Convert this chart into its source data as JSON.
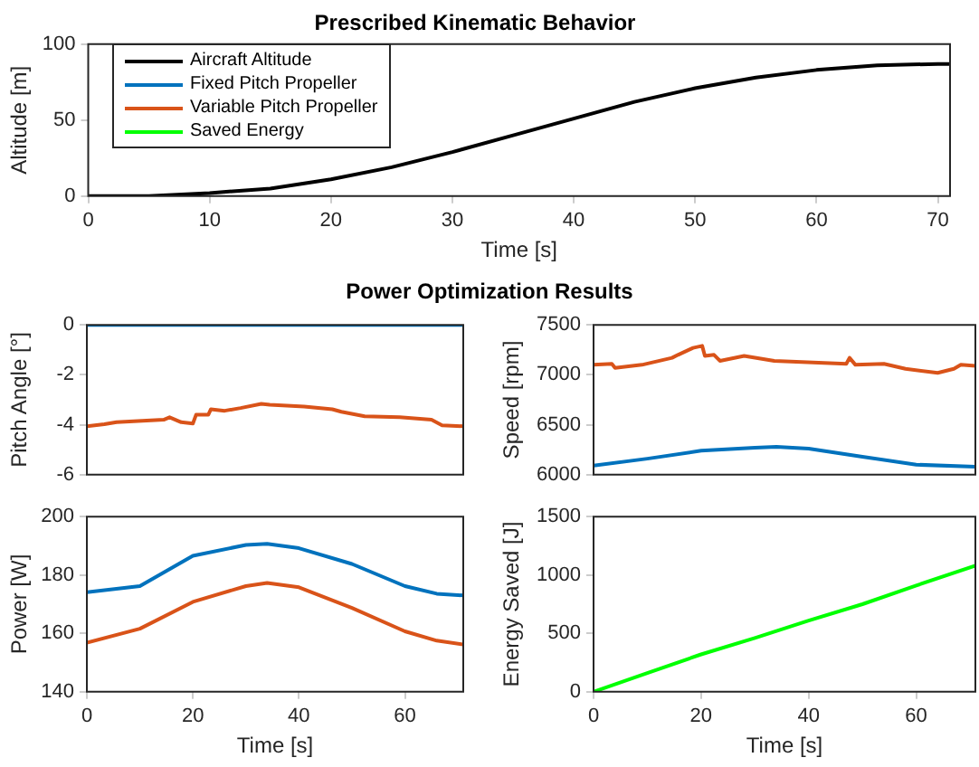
{
  "chart_data": [
    {
      "type": "line",
      "title": "Prescribed Kinematic Behavior",
      "xlabel": "Time [s]",
      "ylabel": "Altitude [m]",
      "xlim": [
        0,
        71
      ],
      "xticks": [
        0,
        10,
        20,
        30,
        40,
        50,
        60,
        70
      ],
      "ylim": [
        0,
        100
      ],
      "yticks": [
        0,
        50,
        100
      ],
      "legend": "top left",
      "x": [
        0,
        5,
        10,
        15,
        20,
        25,
        30,
        35,
        40,
        45,
        50,
        55,
        60,
        65,
        70,
        71
      ],
      "series": [
        {
          "name": "Aircraft Altitude",
          "color": "#000000",
          "values": [
            0,
            0,
            2,
            5,
            11,
            19,
            29,
            40,
            51,
            62,
            71,
            78,
            83,
            86,
            87,
            87
          ]
        }
      ]
    },
    {
      "type": "line",
      "title": "Power Optimization Results",
      "ylabel": "Pitch Angle [°]",
      "xlim": [
        0,
        71
      ],
      "xticks": [
        0,
        20,
        40,
        60
      ],
      "ylim": [
        -6,
        0
      ],
      "yticks": [
        -6,
        -4,
        -2,
        0
      ],
      "tick_labels": "y",
      "legend": "top left",
      "series": [
        {
          "name": "Fixed Pitch Propeller",
          "color": "#0072bd",
          "x": [
            0,
            71
          ],
          "values": [
            0,
            0
          ]
        },
        {
          "name": "Variable Pitch Propeller",
          "color": "#d95319",
          "x": [
            0,
            3.3,
            5.6,
            14.5,
            15.6,
            17.8,
            20,
            20.6,
            22.9,
            23.4,
            26,
            29,
            32.9,
            34.5,
            41,
            46.3,
            48,
            52.4,
            59,
            65,
            67,
            71
          ],
          "values": [
            -4.06,
            -3.98,
            -3.9,
            -3.8,
            -3.7,
            -3.9,
            -3.95,
            -3.6,
            -3.6,
            -3.38,
            -3.44,
            -3.33,
            -3.16,
            -3.2,
            -3.27,
            -3.38,
            -3.48,
            -3.66,
            -3.7,
            -3.8,
            -4.02,
            -4.06
          ]
        }
      ]
    },
    {
      "type": "line",
      "ylabel": "Speed [rpm]",
      "xlim": [
        0,
        71
      ],
      "xticks": [
        0,
        20,
        40,
        60
      ],
      "ylim": [
        6000,
        7500
      ],
      "yticks": [
        6000,
        6500,
        7000,
        7500
      ],
      "tick_labels": "y",
      "series": [
        {
          "color": "#0072bd",
          "x": [
            0,
            10,
            20,
            30,
            34,
            40,
            50,
            60,
            71
          ],
          "values": [
            6090,
            6160,
            6240,
            6270,
            6280,
            6260,
            6180,
            6100,
            6080
          ]
        },
        {
          "color": "#d95319",
          "x": [
            0,
            3.4,
            4,
            9,
            14.6,
            15.7,
            18.5,
            20.2,
            20.7,
            22.4,
            23.5,
            28,
            33.6,
            47,
            47.6,
            48.7,
            54,
            58,
            64,
            67,
            68.3,
            71
          ],
          "values": [
            7100,
            7110,
            7070,
            7100,
            7170,
            7200,
            7270,
            7290,
            7190,
            7200,
            7140,
            7190,
            7140,
            7110,
            7170,
            7100,
            7110,
            7060,
            7020,
            7060,
            7100,
            7090
          ]
        }
      ]
    },
    {
      "type": "line",
      "xlabel": "Time [s]",
      "ylabel": "Power [W]",
      "xlim": [
        0,
        71
      ],
      "xticks": [
        0,
        20,
        40,
        60
      ],
      "ylim": [
        140,
        200
      ],
      "yticks": [
        140,
        160,
        180,
        200
      ],
      "x": [
        0,
        10,
        20,
        30,
        34,
        40,
        50,
        60,
        66,
        71
      ],
      "series": [
        {
          "color": "#0072bd",
          "values": [
            174.1,
            176.2,
            186.6,
            190.3,
            190.7,
            189.2,
            183.8,
            176.2,
            173.6,
            173.0
          ]
        },
        {
          "color": "#d95319",
          "values": [
            156.8,
            161.6,
            170.8,
            176.2,
            177.3,
            175.8,
            168.7,
            160.7,
            157.5,
            156.2
          ]
        }
      ]
    },
    {
      "type": "line",
      "xlabel": "Time [s]",
      "ylabel": "Energy Saved [J]",
      "xlim": [
        0,
        71
      ],
      "xticks": [
        0,
        20,
        40,
        60
      ],
      "ylim": [
        0,
        1500
      ],
      "yticks": [
        0,
        500,
        1000,
        1500
      ],
      "legend": "top left",
      "x": [
        0,
        10,
        20,
        30,
        40,
        50,
        60,
        71
      ],
      "series": [
        {
          "name": "Saved Energy",
          "color": "#00ff00",
          "values": [
            0,
            160,
            320,
            460,
            610,
            750,
            910,
            1080
          ]
        }
      ]
    }
  ]
}
